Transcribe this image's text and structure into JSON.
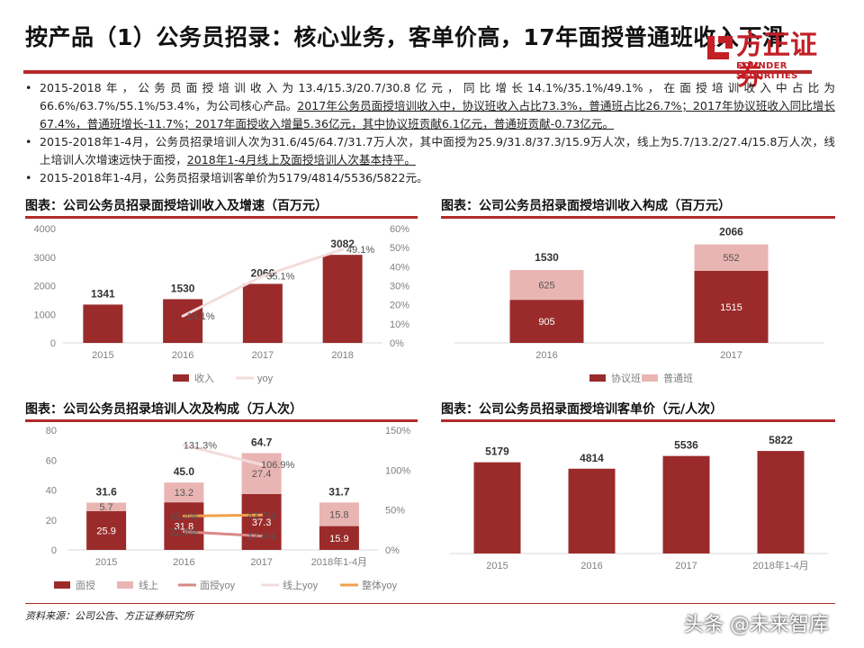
{
  "page": {
    "title": "按产品（1）公务员招录：核心业务，客单价高，17年面授普通班收入下滑",
    "logo_cn": "方正证券",
    "logo_en": "FOUNDER SECURITIES",
    "source": "资料来源：公司公告、方正证券研究所",
    "watermark": "头条 @未来智库"
  },
  "bullets": [
    {
      "plain": "2015-2018年，公务员面授培训收入为13.4/15.3/20.7/30.8亿元，同比增长14.1%/35.1%/49.1%，在面授培训收入中占比为66.6%/63.7%/55.1%/53.4%，为公司核心产品。",
      "underlined": "2017年公务员面授培训收入中，协议班收入占比73.3%，普通班占比26.7%；2017年协议班收入同比增长67.4%，普通班增长-11.7%；2017年面授收入增量5.36亿元，其中协议班贡献6.1亿元，普通班贡献-0.73亿元。"
    },
    {
      "plain": "2015-2018年1-4月，公务员招录培训人次为31.6/45/64.7/31.7万人次，其中面授为25.9/31.8/37.3/15.9万人次，线上为5.7/13.2/27.4/15.8万人次，线上培训人次增速远快于面授，",
      "underlined": "2018年1-4月线上及面授培训人次基本持平。"
    },
    {
      "plain": "2015-2018年1-4月，公务员招录培训客单价为5179/4814/5536/5822元。",
      "underlined": ""
    }
  ],
  "panels": {
    "p1": "图表：公司公务员招录面授培训收入及增速（百万元）",
    "p2": "图表：公司公务员招录面授培训收入构成（百万元）",
    "p3": "图表：公司公务员招录培训人次及构成（万人次）",
    "p4": "图表：公司公务员招录面授培训客单价（元/人次）"
  },
  "colors": {
    "dark_red": "#9b2b2b",
    "pink": "#e9b5b3",
    "light_pink": "#f4dcdc",
    "orange": "#f0a04b",
    "rose_line": "#d98986",
    "accent": "#b22a2a"
  },
  "chart_data": [
    {
      "id": "revenue_growth",
      "type": "bar",
      "categories": [
        "2015",
        "2016",
        "2017",
        "2018"
      ],
      "series": [
        {
          "name": "收入",
          "values": [
            1341,
            1530,
            2066,
            3082
          ],
          "axis": "left"
        },
        {
          "name": "yoy",
          "type": "line",
          "values": [
            null,
            14.1,
            35.1,
            49.1
          ],
          "labels": [
            "",
            "14.1%",
            "35.1%",
            "49.1%"
          ],
          "axis": "right"
        }
      ],
      "left_ticks": [
        "0",
        "1000",
        "2000",
        "3000",
        "4000"
      ],
      "right_ticks": [
        "0%",
        "10%",
        "20%",
        "30%",
        "40%",
        "50%",
        "60%"
      ],
      "ylim": [
        0,
        4000
      ],
      "y2lim": [
        0,
        60
      ],
      "legend": "bottom"
    },
    {
      "id": "revenue_mix",
      "type": "bar",
      "stacked": true,
      "categories": [
        "2016",
        "2017"
      ],
      "series": [
        {
          "name": "协议班",
          "values": [
            905,
            1515
          ]
        },
        {
          "name": "普通班",
          "values": [
            625,
            552
          ]
        }
      ],
      "totals": [
        1530,
        2066
      ],
      "ylim": [
        0,
        2400
      ],
      "legend": "bottom"
    },
    {
      "id": "trainees",
      "type": "bar",
      "stacked": true,
      "categories": [
        "2015",
        "2016",
        "2017",
        "2018年1-4月"
      ],
      "series": [
        {
          "name": "面授",
          "values": [
            25.9,
            31.8,
            37.3,
            15.9
          ]
        },
        {
          "name": "线上",
          "values": [
            5.7,
            13.2,
            27.4,
            15.8
          ]
        },
        {
          "name": "面授yoy",
          "type": "line",
          "values": [
            null,
            22.8,
            17.4,
            null
          ],
          "labels": [
            "",
            "22.8%",
            "17.4%",
            ""
          ]
        },
        {
          "name": "线上yoy",
          "type": "line",
          "values": [
            null,
            131.3,
            106.9,
            null
          ],
          "labels": [
            "",
            "131.3%",
            "106.9%",
            ""
          ]
        },
        {
          "name": "整体yoy",
          "type": "line",
          "values": [
            null,
            42.4,
            43.7,
            null
          ],
          "labels": [
            "",
            "42.4%",
            "43.7%",
            ""
          ]
        }
      ],
      "totals": [
        31.6,
        45.0,
        64.7,
        31.7
      ],
      "total_labels": [
        "31.6",
        "45.0",
        "64.7",
        "31.7"
      ],
      "left_ticks": [
        "0",
        "20",
        "40",
        "60",
        "80"
      ],
      "right_ticks": [
        "0%",
        "50%",
        "100%",
        "150%"
      ],
      "ylim": [
        0,
        80
      ],
      "y2lim": [
        0,
        150
      ],
      "legend": "bottom"
    },
    {
      "id": "unit_price",
      "type": "bar",
      "categories": [
        "2015",
        "2016",
        "2017",
        "2018年1-4月"
      ],
      "values": [
        5179,
        4814,
        5536,
        5822
      ],
      "ylim": [
        0,
        7000
      ]
    }
  ]
}
